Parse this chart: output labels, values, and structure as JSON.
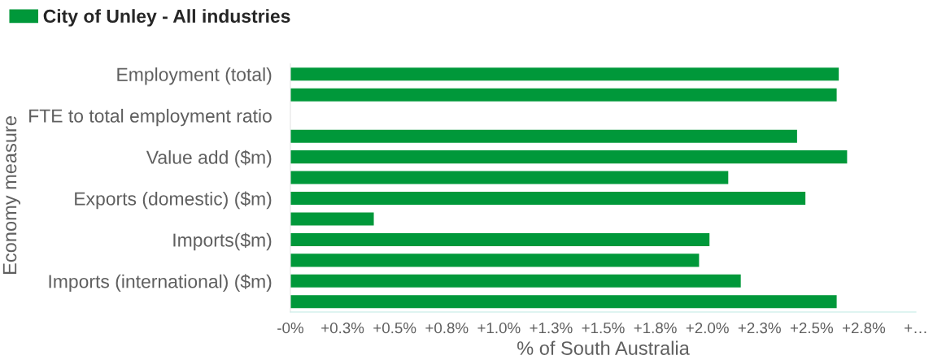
{
  "chart_data": {
    "type": "bar",
    "orientation": "horizontal",
    "categories": [
      "Employment (total)",
      null,
      "FTE to total employment ratio",
      null,
      "Value add ($m)",
      null,
      "Exports (domestic) ($m)",
      null,
      "Imports($m)",
      null,
      "Imports (international) ($m)",
      null
    ],
    "series": [
      {
        "name": "City of Unley - All industries",
        "color": "#00983a",
        "values": [
          2.63,
          2.62,
          null,
          2.43,
          2.67,
          2.1,
          2.47,
          0.4,
          2.01,
          1.96,
          2.16,
          2.62
        ]
      }
    ],
    "xlabel": "% of South Australia",
    "ylabel": "Economy measure",
    "xlim": [
      0,
      3.0
    ],
    "xticks": [
      {
        "value": 0,
        "label": "-0%"
      },
      {
        "value": 0.25,
        "label": "+0.3%"
      },
      {
        "value": 0.5,
        "label": "+0.5%"
      },
      {
        "value": 0.75,
        "label": "+0.8%"
      },
      {
        "value": 1.0,
        "label": "+1.0%"
      },
      {
        "value": 1.25,
        "label": "+1.3%"
      },
      {
        "value": 1.5,
        "label": "+1.5%"
      },
      {
        "value": 1.75,
        "label": "+1.8%"
      },
      {
        "value": 2.0,
        "label": "+2.0%"
      },
      {
        "value": 2.25,
        "label": "+2.3%"
      },
      {
        "value": 2.5,
        "label": "+2.5%"
      },
      {
        "value": 2.75,
        "label": "+2.8%"
      },
      {
        "value": 3.0,
        "label": "+…"
      }
    ],
    "legend": "top left"
  }
}
